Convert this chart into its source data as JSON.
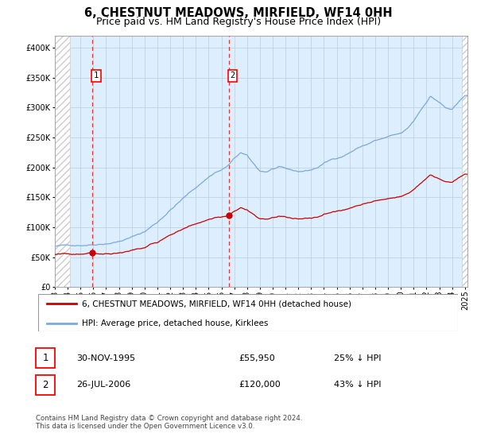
{
  "title": "6, CHESTNUT MEADOWS, MIRFIELD, WF14 0HH",
  "subtitle": "Price paid vs. HM Land Registry's House Price Index (HPI)",
  "hpi_label": "HPI: Average price, detached house, Kirklees",
  "property_label": "6, CHESTNUT MEADOWS, MIRFIELD, WF14 0HH (detached house)",
  "sale1_date": "30-NOV-1995",
  "sale1_price": 55950,
  "sale1_pct": "25% ↓ HPI",
  "sale2_date": "26-JUL-2006",
  "sale2_price": 120000,
  "sale2_pct": "43% ↓ HPI",
  "footer": "Contains HM Land Registry data © Crown copyright and database right 2024.\nThis data is licensed under the Open Government Licence v3.0.",
  "hpi_color": "#7aaadd",
  "property_color": "#cc0000",
  "marker_color": "#cc0000",
  "vline_color": "#ee3333",
  "plot_bg": "#ddeeff",
  "grid_color": "#bbccdd",
  "ylim_max": 420000,
  "xmin": 1993.0,
  "xmax": 2025.2,
  "sale1_year": 1995.92,
  "sale2_year": 2006.56,
  "title_fontsize": 10.5,
  "subtitle_fontsize": 9,
  "tick_fontsize": 7,
  "legend_fontsize": 7.5,
  "annot_fontsize": 8,
  "footer_fontsize": 6.2
}
